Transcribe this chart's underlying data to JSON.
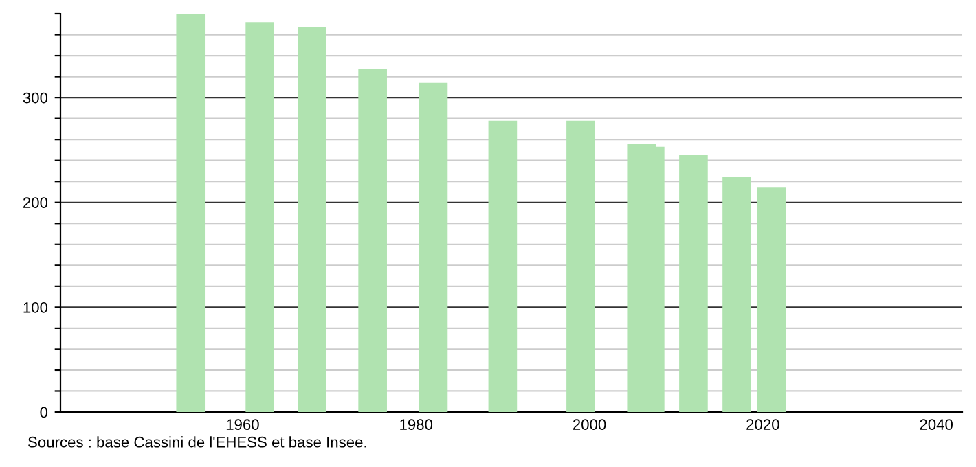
{
  "chart_data": {
    "type": "bar",
    "x": [
      1954,
      1962,
      1968,
      1975,
      1982,
      1990,
      1999,
      2006,
      2007,
      2012,
      2017,
      2021
    ],
    "values": [
      380,
      372,
      367,
      327,
      314,
      278,
      278,
      256,
      253,
      245,
      224,
      214
    ],
    "color": "#b0e3b0",
    "xlim": [
      1939,
      2043
    ],
    "xticks": [
      1960,
      1980,
      2000,
      2020,
      2040
    ],
    "ylim": [
      0,
      380
    ],
    "yticks": [
      0,
      {
        "value": 20,
        "label": null
      },
      {
        "value": 40,
        "label": null
      },
      {
        "value": 60,
        "label": null
      },
      {
        "value": 80,
        "label": null
      },
      100,
      {
        "value": 120,
        "label": null
      },
      {
        "value": 140,
        "label": null
      },
      {
        "value": 160,
        "label": null
      },
      {
        "value": 180,
        "label": null
      },
      200,
      {
        "value": 220,
        "label": null
      },
      {
        "value": 240,
        "label": null
      },
      {
        "value": 260,
        "label": null
      },
      {
        "value": 280,
        "label": null
      },
      300,
      {
        "value": 320,
        "label": null
      },
      {
        "value": 340,
        "label": null
      },
      {
        "value": 360,
        "label": null
      },
      {
        "value": 380,
        "label": null
      }
    ],
    "grid": "y",
    "annotations": [
      "Sources : base Cassini de l'EHESS et base Insee."
    ]
  }
}
